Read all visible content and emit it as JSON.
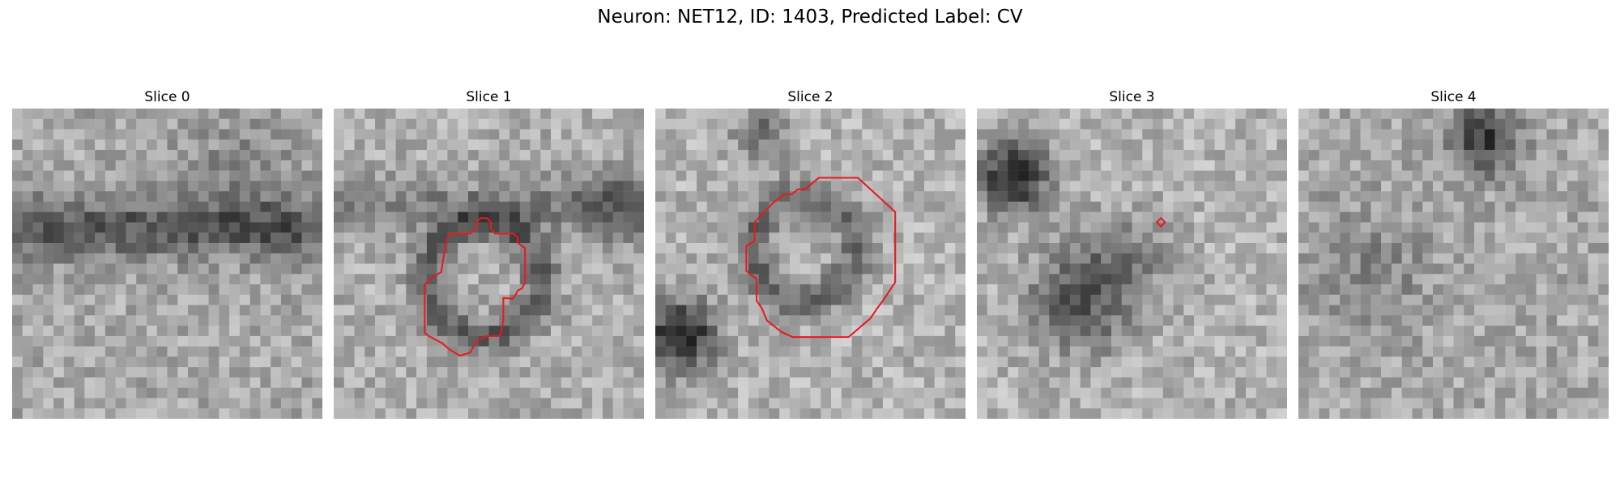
{
  "figure": {
    "title": "Neuron: NET12, ID: 1403, Predicted Label: CV",
    "contour_color": "#e8191f"
  },
  "panels": [
    {
      "title": "Slice 0",
      "has_contour": false,
      "texture": "dark horizontal band across middle"
    },
    {
      "title": "Slice 1",
      "has_contour": true,
      "texture": "ring-shaped cell with bright center"
    },
    {
      "title": "Slice 2",
      "has_contour": true,
      "texture": "round cell with bright center"
    },
    {
      "title": "Slice 3",
      "has_contour": true,
      "texture": "dark blobs, tiny contour"
    },
    {
      "title": "Slice 4",
      "has_contour": false,
      "texture": "dark blob at top"
    }
  ]
}
